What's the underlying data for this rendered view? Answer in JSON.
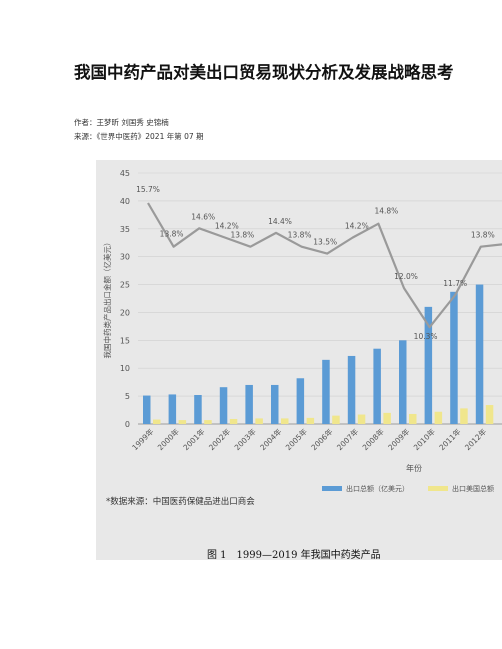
{
  "article": {
    "title": "我国中药产品对美出口贸易现状分析及发展战略思考",
    "authors": "作者：王梦昕 刘国秀 史锦楠",
    "source": "来源：《世界中医药》2021 年第 07 期"
  },
  "figure": {
    "data_source_note": "*数据来源：中国医药保健品进出口商会",
    "caption": "图 1　1999—2019 年我国中药类产品"
  },
  "chart_data": {
    "type": "bar",
    "ylabel": "我国中药类产品出口金额（亿美元）",
    "xlabel": "年份",
    "ylim": [
      0,
      45
    ],
    "yticks": [
      "0",
      "5",
      "10",
      "15",
      "20",
      "25",
      "30",
      "35",
      "40",
      "45"
    ],
    "grid": true,
    "legend_position": "bottom-right",
    "categories": [
      "1999年",
      "2000年",
      "2001年",
      "2002年",
      "2003年",
      "2004年",
      "2005年",
      "2006年",
      "2007年",
      "2008年",
      "2009年",
      "2010年",
      "2011年",
      "2012年"
    ],
    "series": [
      {
        "name": "出口总额（亿美元）",
        "color": "#5b9bd5",
        "values": [
          5.1,
          5.3,
          5.2,
          6.6,
          7.0,
          7.0,
          8.2,
          11.5,
          12.2,
          13.5,
          15.0,
          21.0,
          23.7,
          25.0
        ]
      },
      {
        "name": "出口美国总额",
        "color": "#f0e68c",
        "values": [
          0.8,
          0.7,
          0.7,
          0.9,
          1.0,
          1.0,
          1.1,
          1.5,
          1.7,
          2.0,
          1.8,
          2.2,
          2.8,
          3.4
        ]
      },
      {
        "name": "",
        "type": "line",
        "color": "#9a9a9a",
        "values": [
          15.7,
          13.8,
          14.6,
          14.2,
          13.8,
          14.4,
          13.8,
          13.5,
          14.2,
          14.8,
          12.0,
          10.3,
          11.7,
          13.8
        ],
        "labels": [
          "15.7%",
          "13.8%",
          "14.6%",
          "14.2%",
          "13.8%",
          "14.4%",
          "13.8%",
          "13.5%",
          "14.2%",
          "14.8%",
          "12.0%",
          "10.3%",
          "11.7%",
          "13.8%"
        ]
      }
    ]
  }
}
